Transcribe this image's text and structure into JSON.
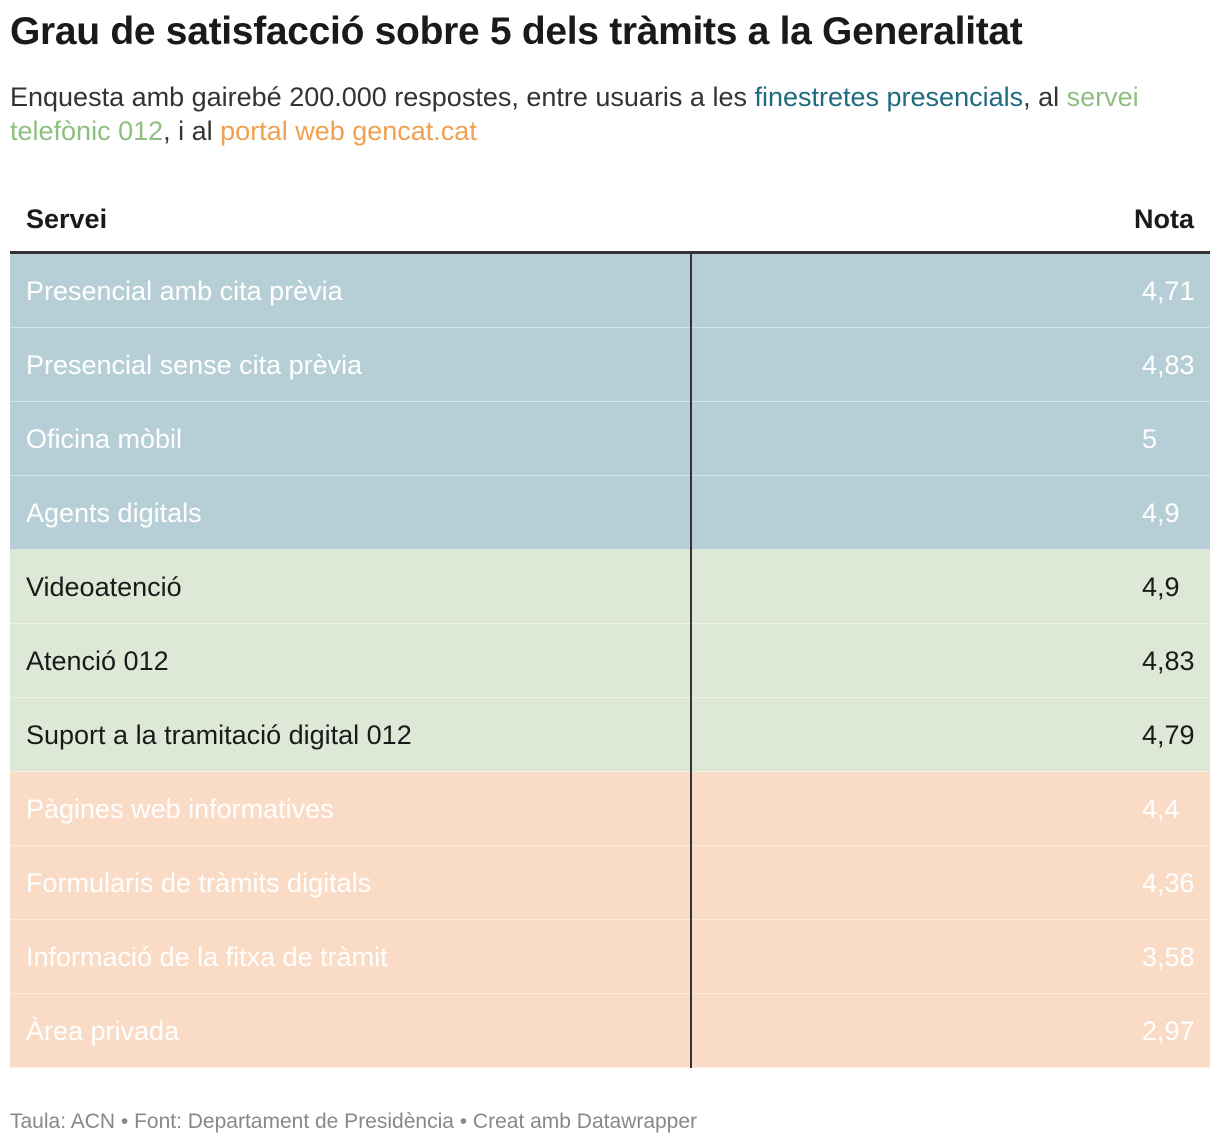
{
  "title": "Grau de satisfacció sobre 5 dels tràmits a la Generalitat",
  "subtitle": {
    "part1": "Enquesta amb gairebé 200.000 respostes, entre usuaris a les ",
    "highlight1": "finestretes presencials",
    "part2": ", al ",
    "highlight2": "servei telefònic 012",
    "part3": ", i al ",
    "highlight3": "portal web gencat.cat"
  },
  "colors": {
    "presencial": "#b6ced5",
    "telefonic": "#dde9d6",
    "web": "#fadbc5",
    "highlight_presencial": "#1e6b80",
    "highlight_telefonic": "#8fbf7f",
    "highlight_web": "#f0a050"
  },
  "chart_data": {
    "type": "table",
    "columns": [
      "Servei",
      "Nota"
    ],
    "rows": [
      {
        "servei": "Presencial amb cita prèvia",
        "nota": "4,71",
        "group": "blue"
      },
      {
        "servei": "Presencial sense cita prèvia",
        "nota": "4,83",
        "group": "blue"
      },
      {
        "servei": "Oficina mòbil",
        "nota": "5",
        "group": "blue"
      },
      {
        "servei": "Agents digitals",
        "nota": "4,9",
        "group": "blue"
      },
      {
        "servei": "Videoatenció",
        "nota": "4,9",
        "group": "green"
      },
      {
        "servei": "Atenció 012",
        "nota": "4,83",
        "group": "green"
      },
      {
        "servei": "Suport a la tramitació digital 012",
        "nota": "4,79",
        "group": "green"
      },
      {
        "servei": "Pàgines web informatives",
        "nota": "4,4",
        "group": "orange"
      },
      {
        "servei": "Formularis de tràmits digitals",
        "nota": "4,36",
        "group": "orange"
      },
      {
        "servei": "Informació de la fitxa de tràmit",
        "nota": "3,58",
        "group": "orange"
      },
      {
        "servei": "Àrea privada",
        "nota": "2,97",
        "group": "orange"
      }
    ]
  },
  "footer": "Taula: ACN • Font: Departament de Presidència • Creat amb Datawrapper"
}
